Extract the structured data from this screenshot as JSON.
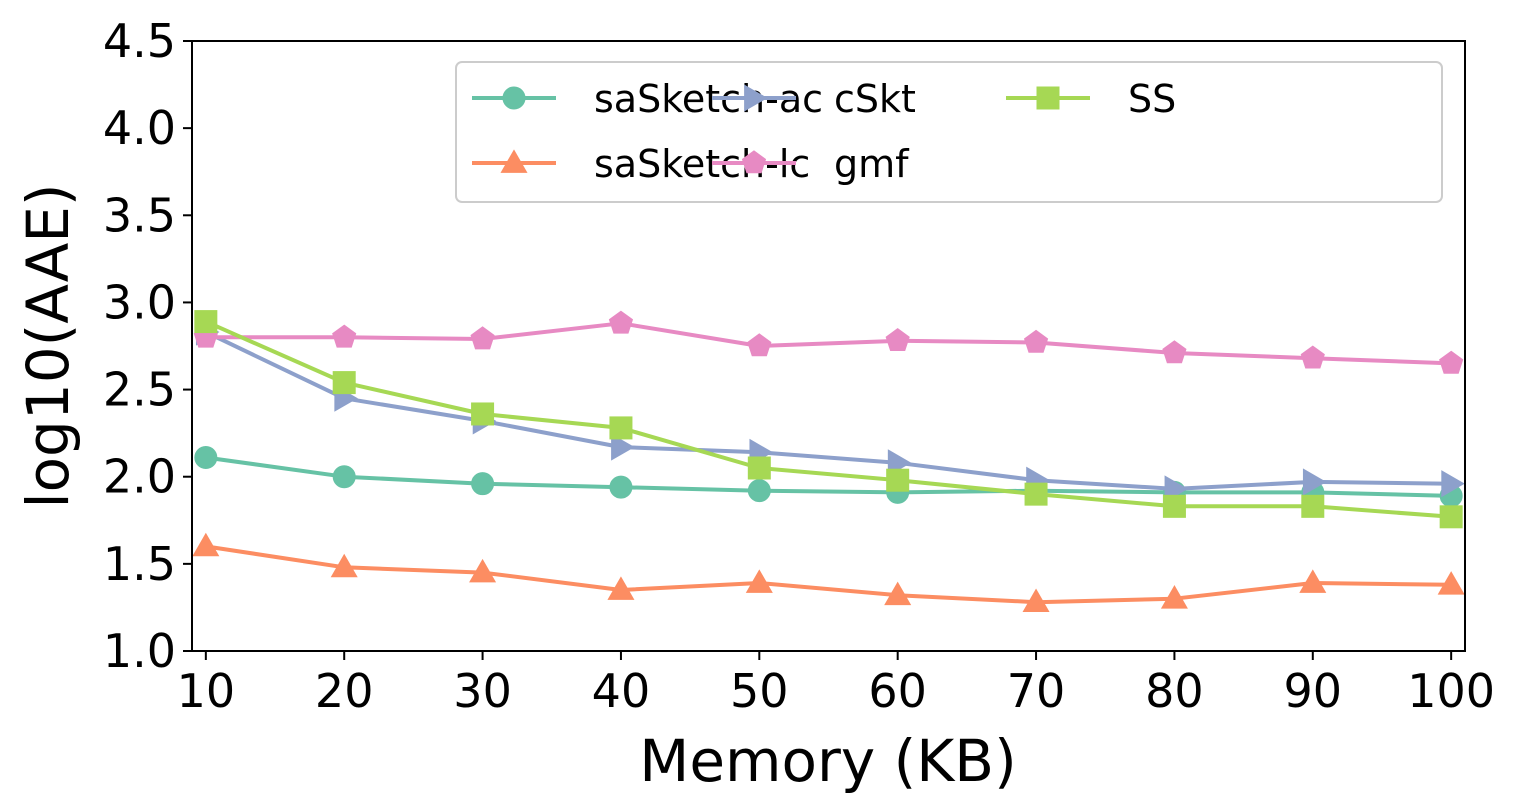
{
  "chart_data": {
    "type": "line",
    "xlabel": "Memory (KB)",
    "ylabel": "log10(AAE)",
    "x": [
      10,
      20,
      30,
      40,
      50,
      60,
      70,
      80,
      90,
      100
    ],
    "xticks": [
      "10",
      "20",
      "30",
      "40",
      "50",
      "60",
      "70",
      "80",
      "90",
      "100"
    ],
    "yticks": [
      "1.0",
      "1.5",
      "2.0",
      "2.5",
      "3.0",
      "3.5",
      "4.0",
      "4.5"
    ],
    "xlim": [
      9,
      101
    ],
    "ylim": [
      1.0,
      4.5
    ],
    "grid": false,
    "legend_position": "top-right",
    "series": [
      {
        "name": "saSketch-ac",
        "color": "#66c2a5",
        "marker": "circle",
        "values": [
          2.11,
          2.0,
          1.96,
          1.94,
          1.92,
          1.91,
          1.92,
          1.91,
          1.91,
          1.89
        ]
      },
      {
        "name": "saSketch-lc",
        "color": "#fc8d62",
        "marker": "triangle-up",
        "values": [
          1.6,
          1.48,
          1.45,
          1.35,
          1.39,
          1.32,
          1.28,
          1.3,
          1.39,
          1.38
        ]
      },
      {
        "name": "cSkt",
        "color": "#8da0cb",
        "marker": "triangle-right",
        "values": [
          2.83,
          2.45,
          2.32,
          2.17,
          2.14,
          2.08,
          1.98,
          1.93,
          1.97,
          1.96
        ]
      },
      {
        "name": "gmf",
        "color": "#e78ac3",
        "marker": "pentagon",
        "values": [
          2.8,
          2.8,
          2.79,
          2.88,
          2.75,
          2.78,
          2.77,
          2.71,
          2.68,
          2.65
        ]
      },
      {
        "name": "SS",
        "color": "#a6d854",
        "marker": "square",
        "values": [
          2.89,
          2.54,
          2.36,
          2.28,
          2.05,
          1.98,
          1.9,
          1.83,
          1.83,
          1.77
        ]
      }
    ]
  }
}
